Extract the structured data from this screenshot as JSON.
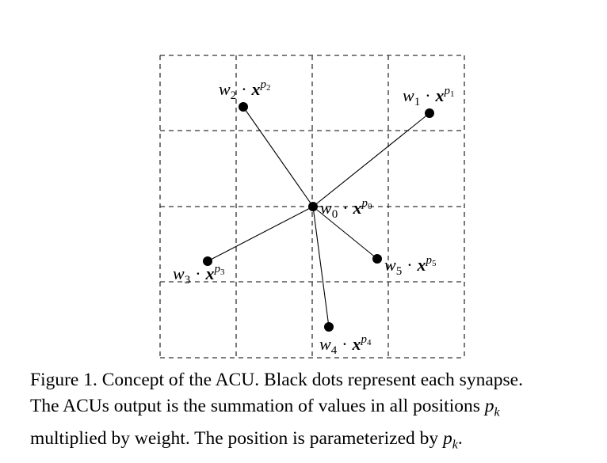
{
  "figure": {
    "nodes": [
      {
        "id": "p0",
        "label": "w",
        "sub": "0",
        "dot": "·",
        "var": "x",
        "sup": "p",
        "supsub": "0"
      },
      {
        "id": "p1",
        "label": "w",
        "sub": "1",
        "dot": "·",
        "var": "x",
        "sup": "p",
        "supsub": "1"
      },
      {
        "id": "p2",
        "label": "w",
        "sub": "2",
        "dot": "·",
        "var": "x",
        "sup": "p",
        "supsub": "2"
      },
      {
        "id": "p3",
        "label": "w",
        "sub": "3",
        "dot": "·",
        "var": "x",
        "sup": "p",
        "supsub": "3"
      },
      {
        "id": "p4",
        "label": "w",
        "sub": "4",
        "dot": "·",
        "var": "x",
        "sup": "p",
        "supsub": "4"
      },
      {
        "id": "p5",
        "label": "w",
        "sub": "5",
        "dot": "·",
        "var": "x",
        "sup": "p",
        "supsub": "5"
      }
    ]
  },
  "caption": {
    "line1": "Figure 1. Concept of the ACU. Black dots represent each synapse.",
    "line2_text": "The ACUs output is the summation of values in all positions ",
    "line2_math": "p",
    "line2_math_sub": "k",
    "line3_text": "multiplied by weight. The position is parameterized by ",
    "line3_math": "p",
    "line3_math_sub": "k",
    "line3_end": "."
  },
  "colors": {
    "ink": "#000000",
    "grid": "#333333",
    "background": "#ffffff"
  }
}
